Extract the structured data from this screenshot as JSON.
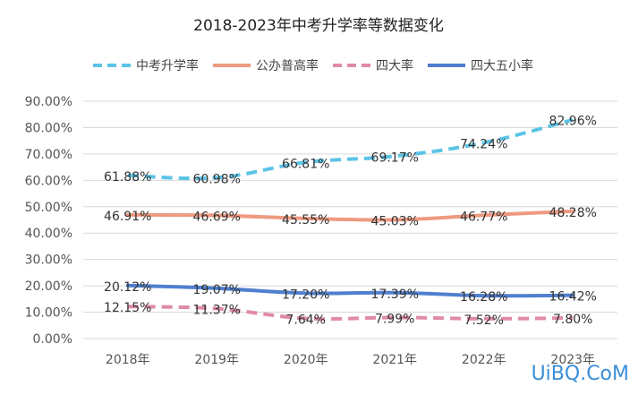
{
  "chart_data": {
    "type": "line",
    "title": "2018-2023年中考升学率等数据变化",
    "categories": [
      "2018年",
      "2019年",
      "2020年",
      "2021年",
      "2022年",
      "2023年"
    ],
    "ylim": [
      0,
      90
    ],
    "yticks": [
      "0.00%",
      "10.00%",
      "20.00%",
      "30.00%",
      "40.00%",
      "50.00%",
      "60.00%",
      "70.00%",
      "80.00%",
      "90.00%"
    ],
    "grid": true,
    "legend_position": "top",
    "series": [
      {
        "name": "中考升学率",
        "color": "#5bc4e6",
        "dashed": true,
        "values": [
          61.88,
          60.98,
          66.81,
          69.17,
          74.24,
          82.96
        ],
        "labels": [
          "61.88%",
          "60.98%",
          "66.81%",
          "69.17%",
          "74.24%",
          "82.96%"
        ]
      },
      {
        "name": "公办普高率",
        "color": "#ee9a80",
        "dashed": false,
        "values": [
          46.91,
          46.69,
          45.55,
          45.03,
          46.77,
          48.28
        ],
        "labels": [
          "46.91%",
          "46.69%",
          "45.55%",
          "45.03%",
          "46.77%",
          "48.28%"
        ]
      },
      {
        "name": "四大率",
        "color": "#e08aa8",
        "dashed": true,
        "values": [
          12.15,
          11.37,
          7.64,
          7.99,
          7.52,
          7.8
        ],
        "labels": [
          "12.15%",
          "11.37%",
          "7.64%",
          "7.99%",
          "7.52%",
          "7.80%"
        ]
      },
      {
        "name": "四大五小率",
        "color": "#4f7fce",
        "dashed": false,
        "values": [
          20.12,
          19.07,
          17.2,
          17.39,
          16.28,
          16.42
        ],
        "labels": [
          "20.12%",
          "19.07%",
          "17.20%",
          "17.39%",
          "16.28%",
          "16.42%"
        ]
      }
    ]
  },
  "watermark": "UiBQ.CoM"
}
